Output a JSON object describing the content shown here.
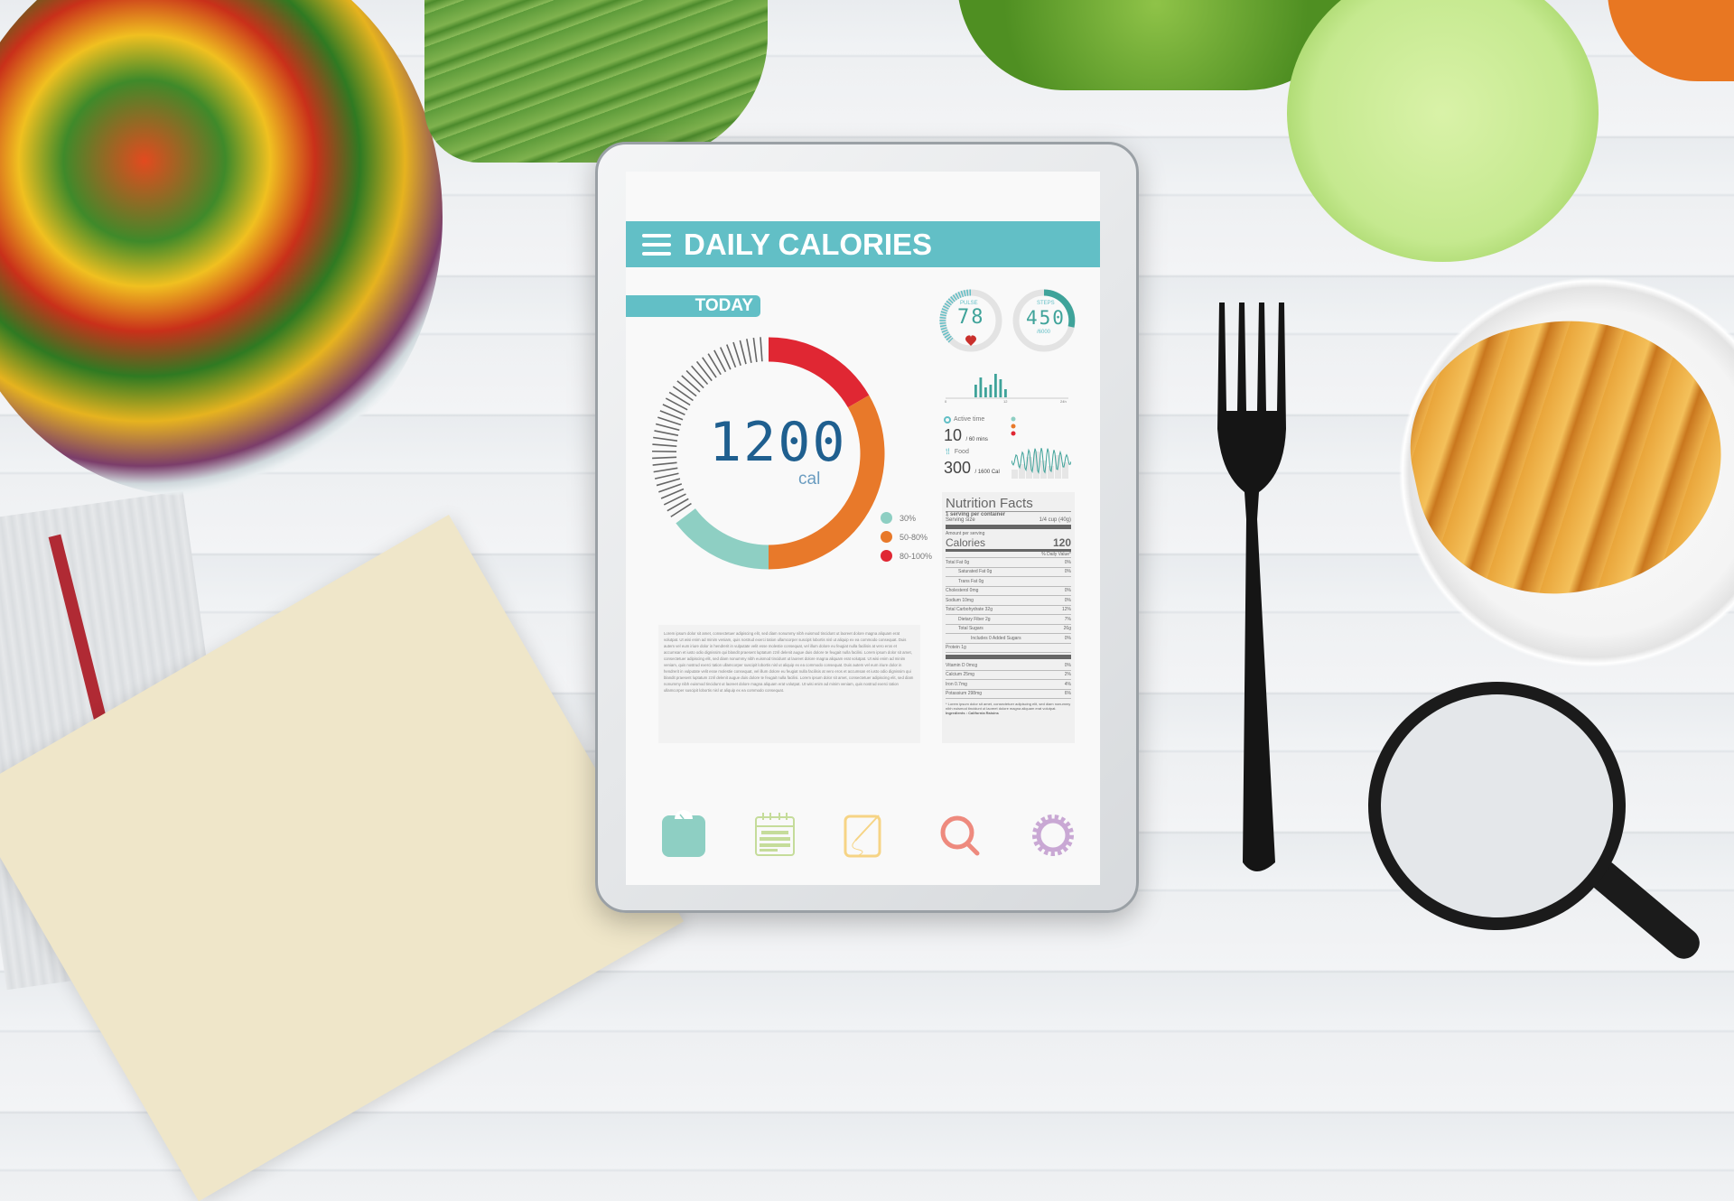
{
  "app": {
    "title": "DAILY CALORIES",
    "tab": "TODAY"
  },
  "calories": {
    "value": "1200",
    "unit": "cal"
  },
  "legend": [
    {
      "label": "30%",
      "color": "#8ecfc3"
    },
    {
      "label": "50-80%",
      "color": "#e8792a"
    },
    {
      "label": "80-100%",
      "color": "#e02733"
    }
  ],
  "pulse": {
    "label": "PULSE",
    "value": "78"
  },
  "steps": {
    "label": "STEPS",
    "value": "450",
    "goal": "/6000"
  },
  "activity_chart": {
    "ticks": [
      "0",
      "12",
      "24h"
    ]
  },
  "active_time": {
    "label": "Active time",
    "value": "10",
    "unit": "/ 60 mins"
  },
  "food": {
    "label": "Food",
    "value": "300",
    "unit": "/ 1600 Cal"
  },
  "nutrition": {
    "title": "Nutrition Facts",
    "servings": "1 serving per container",
    "serving_label": "Serving size",
    "serving_value": "1/4 cup (40g)",
    "amount_label": "Amount per serving",
    "calories_label": "Calories",
    "calories_value": "120",
    "dv_label": "% Daily Value*",
    "rows": [
      [
        "Total Fat 0g",
        "0%"
      ],
      [
        "Saturated Fat 0g",
        "0%"
      ],
      [
        "Trans Fat   0g",
        ""
      ],
      [
        "Cholesterol   0mg",
        "0%"
      ],
      [
        "Sodium 10mg",
        "0%"
      ],
      [
        "Total Carbohydrate 32g",
        "12%"
      ],
      [
        "Dietary Fiber 2g",
        "7%"
      ],
      [
        "Total Sugars",
        "26g"
      ],
      [
        "Includes  0  Added Sugars",
        "0%"
      ],
      [
        "Protein   1g",
        ""
      ]
    ],
    "vitamins": [
      [
        "Vitamin D   0mcg",
        "0%"
      ],
      [
        "Calcium   25mg",
        "2%"
      ],
      [
        "Iron   0.7mg",
        "4%"
      ],
      [
        "Potassium   298mg",
        "6%"
      ]
    ],
    "footnote": "* Lorem ipsum dolor sit amet, consectetuer adipiscing elit, sed diam nonummy nibh euismod tincidunt ut laoreet dolore magna aliquam erat volutpat.",
    "ingredients": "Ingredients : California Raisins"
  },
  "body_text": "Lorem ipsum dolor sit amet, consectetuer adipiscing elit, sed diam nonummy nibh euismod tincidunt ut laoreet dolore magna aliquam erat volutpat. Ut wisi enim ad minim veniam, quis nostrud exerci tation ullamcorper suscipit lobortis nisl ut aliquip ex ea commodo consequat. Duis autem vel eum iriure dolor in hendrerit in vulputate velit esse molestie consequat, vel illum dolore eu feugiat nulla facilisis at vero eros et accumsan et iusto odio dignissim qui blandit praesent luptatum zzril delenit augue duis dolore te feugait nulla facilisi. Lorem ipsum dolor sit amet, consectetuer adipiscing elit, sed diam nonummy nibh euismod tincidunt ut laoreet dolore magna aliquam erat volutpat. Ut wisi enim ad minim veniam, quis nostrud exerci tation ullamcorper suscipit lobortis nisl ut aliquip ex ea commodo consequat. Duis autem vel eum iriure dolor in hendrerit in vulputate velit esse molestie consequat, vel illum dolore eu feugiat nulla facilisis at vero eros et accumsan et iusto odio dignissim qui blandit praesent luptatum zzril delenit augue duis dolore te feugait nulla facilisi. Lorem ipsum dolor sit amet, consectetuer adipiscing elit, sed diam nonummy nibh euismod tincidunt ut laoreet dolore magna aliquam erat volutpat. Ut wisi enim ad minim veniam, quis nostrud exerci tation ullamcorper suscipit lobortis nisl ut aliquip ex ea commodo consequat.",
  "nav_icons": [
    {
      "icon": "scale-icon",
      "color": "#8ecfc3"
    },
    {
      "icon": "calendar-icon",
      "color": "#c5dc9a"
    },
    {
      "icon": "notepad-icon",
      "color": "#f6d485"
    },
    {
      "icon": "search-icon",
      "color": "#ee8a7e"
    },
    {
      "icon": "gear-icon",
      "color": "#c9a8d4"
    }
  ],
  "colors": {
    "accent": "#62bfc6",
    "digits": "#1f5f8f"
  }
}
